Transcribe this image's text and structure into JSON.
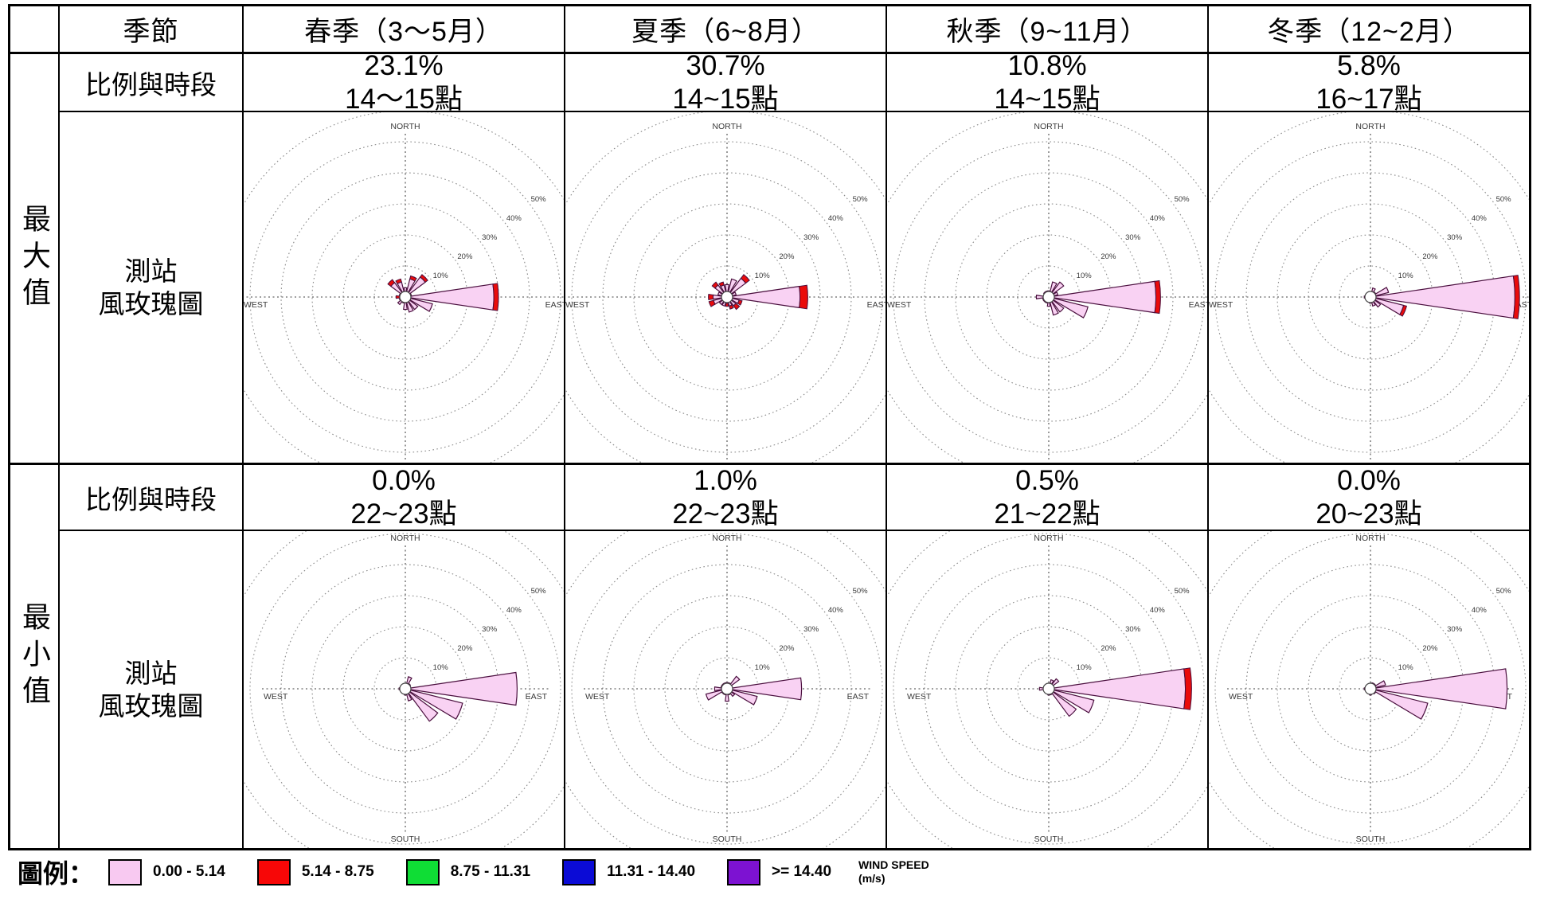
{
  "table": {
    "header": {
      "season_label": "季節",
      "columns": [
        "春季（3～5月）",
        "夏季（6~8月）",
        "秋季（9~11月）",
        "冬季（12~2月）"
      ]
    },
    "sections": [
      {
        "row_label": "最大值",
        "prop_label": "比例與時段",
        "chart_label_1": "測站",
        "chart_label_2": "風玫瑰圖",
        "cells": [
          {
            "pct": "23.1%",
            "time": "14～15點"
          },
          {
            "pct": "30.7%",
            "time": "14~15點"
          },
          {
            "pct": "10.8%",
            "time": "14~15點"
          },
          {
            "pct": "5.8%",
            "time": "16~17點"
          }
        ]
      },
      {
        "row_label": "最小值",
        "prop_label": "比例與時段",
        "chart_label_1": "測站",
        "chart_label_2": "風玫瑰圖",
        "cells": [
          {
            "pct": "0.0%",
            "time": "22~23點"
          },
          {
            "pct": "1.0%",
            "time": "22~23點"
          },
          {
            "pct": "0.5%",
            "time": "21~22點"
          },
          {
            "pct": "0.0%",
            "time": "20~23點"
          }
        ]
      }
    ]
  },
  "legend": {
    "title": "圖例：",
    "entries": [
      {
        "color": "#f8c9f1",
        "label": "0.00 - 5.14"
      },
      {
        "color": "#f70707",
        "label": "5.14 - 8.75"
      },
      {
        "color": "#0fdd35",
        "label": "8.75 - 11.31"
      },
      {
        "color": "#0b0bd6",
        "label": "11.31 - 14.40"
      },
      {
        "color": "#7d12d2",
        "label": ">= 14.40"
      }
    ],
    "unit_label": "WIND SPEED",
    "unit_sub": "(m/s)"
  },
  "chart_data": {
    "type": "wind-rose-grid",
    "compass_labels": [
      "NORTH",
      "EAST",
      "SOUTH",
      "WEST"
    ],
    "ring_labels": [
      "10%",
      "20%",
      "30%",
      "40%",
      "50%"
    ],
    "ring_max_pct": 60,
    "directions": [
      "N",
      "NNE",
      "NE",
      "ENE",
      "E",
      "ESE",
      "SE",
      "SSE",
      "S",
      "SSW",
      "SW",
      "WSW",
      "W",
      "WNW",
      "NW",
      "NNW"
    ],
    "speed_bands": [
      "0.00-5.14",
      "5.14-8.75"
    ],
    "colors": {
      "calm_band": "#f9d2f3",
      "second_band": "#ea0b0b",
      "outline": "#4a0f3e",
      "grid": "#8a8a8a",
      "grid_text": "#3a3a3a"
    },
    "roses": [
      {
        "season": "spring",
        "stat": "max",
        "values": [
          3,
          7,
          9,
          2,
          30,
          9,
          5,
          5,
          4,
          2,
          3,
          2,
          3,
          2,
          7,
          6
        ],
        "red_tip": [
          0,
          1,
          1,
          0,
          1.5,
          0,
          0,
          0,
          0,
          0,
          0,
          0,
          1.5,
          0,
          1.2,
          1
        ]
      },
      {
        "season": "summer",
        "stat": "max",
        "values": [
          4,
          6,
          9,
          3,
          26,
          5,
          5,
          4,
          3,
          3,
          3,
          6,
          6,
          3,
          6,
          5
        ],
        "red_tip": [
          0,
          0,
          1.5,
          0,
          2.5,
          1,
          1.5,
          1,
          1,
          0,
          0,
          1.5,
          1.5,
          0,
          1.2,
          1
        ]
      },
      {
        "season": "autumn",
        "stat": "max",
        "values": [
          2,
          5,
          6,
          3,
          36,
          13,
          6,
          6,
          3,
          2,
          2,
          2,
          4,
          1,
          2,
          2
        ],
        "red_tip": [
          0,
          0,
          0,
          0,
          1.5,
          0,
          0,
          0,
          0,
          0,
          0,
          0,
          0,
          0,
          0,
          0
        ]
      },
      {
        "season": "winter",
        "stat": "max",
        "values": [
          1,
          3,
          2,
          6,
          48,
          12,
          4,
          3,
          2,
          1,
          1,
          1,
          2,
          1,
          1,
          1
        ],
        "red_tip": [
          0,
          0,
          0,
          0,
          1.5,
          1,
          0,
          0,
          0,
          0,
          0,
          0,
          0,
          0,
          0,
          0
        ]
      },
      {
        "season": "spring",
        "stat": "min",
        "values": [
          1,
          4,
          2,
          1,
          36,
          19,
          13,
          4,
          2,
          1,
          1,
          1,
          2,
          1,
          1,
          1
        ],
        "red_tip": [
          0,
          0,
          0,
          0,
          0,
          0,
          0,
          0,
          0,
          0,
          0,
          0,
          0,
          0,
          0,
          0
        ]
      },
      {
        "season": "summer",
        "stat": "min",
        "values": [
          2,
          2,
          5,
          1,
          24,
          10,
          3,
          2,
          4,
          2,
          2,
          7,
          4,
          2,
          2,
          2
        ],
        "red_tip": [
          0,
          0,
          0,
          0,
          0,
          0,
          0,
          0,
          0,
          0,
          0,
          0,
          0,
          0,
          0,
          0
        ]
      },
      {
        "season": "autumn",
        "stat": "min",
        "values": [
          1,
          3,
          4,
          1,
          46,
          15,
          11,
          2,
          2,
          1,
          1,
          1,
          3,
          1,
          1,
          1
        ],
        "red_tip": [
          0,
          0,
          0,
          0,
          2,
          0,
          0,
          0,
          0,
          0,
          0,
          0,
          0,
          0,
          0,
          0
        ]
      },
      {
        "season": "winter",
        "stat": "min",
        "values": [
          1,
          2,
          2,
          5,
          44,
          19,
          2,
          1,
          2,
          1,
          1,
          1,
          2,
          1,
          1,
          1
        ],
        "red_tip": [
          0,
          0,
          0,
          0,
          0,
          0,
          0,
          0,
          0,
          0,
          0,
          0,
          0,
          0,
          0,
          0
        ]
      }
    ]
  }
}
